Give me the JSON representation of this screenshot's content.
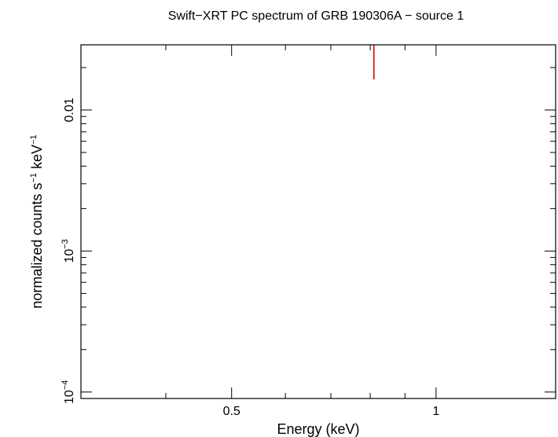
{
  "chart_data": {
    "type": "scatter",
    "title": "Swift−XRT PC spectrum of GRB 190306A − source 1",
    "xlabel": "Energy (keV)",
    "ylabel": {
      "base": "normalized counts s",
      "sup1": "−1",
      "mid": " keV",
      "sup2": "−1"
    },
    "x_scale": "log",
    "y_scale": "log",
    "xlim": [
      0.3,
      1.5
    ],
    "ylim": [
      9e-05,
      0.029
    ],
    "x_ticks": [
      {
        "value": 0.5,
        "label": "0.5"
      },
      {
        "value": 1,
        "label": "1"
      }
    ],
    "y_ticks": [
      {
        "value": 0.01,
        "base": "0.01",
        "exp": ""
      },
      {
        "value": 0.001,
        "base": "10",
        "exp": "−3"
      },
      {
        "value": 0.0001,
        "base": "10",
        "exp": "−4"
      }
    ],
    "series": [
      {
        "color": "#e00000",
        "points": [
          {
            "x": 0.81,
            "y_low": 0.0165,
            "y_high": 0.029
          }
        ]
      }
    ]
  }
}
